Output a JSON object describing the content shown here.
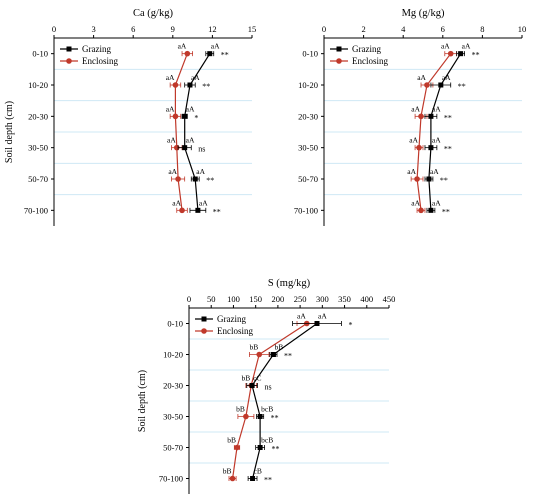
{
  "colors": {
    "grazing": "#000000",
    "enclosing": "#c0392b",
    "band": "#cfe8f5"
  },
  "chart_data": [
    {
      "type": "line",
      "title": "Ca (g/kg)",
      "ylabel": "Soil depth (cm)",
      "xlim": [
        0,
        15
      ],
      "xticks": [
        0,
        3,
        6,
        9,
        12,
        15
      ],
      "categories": [
        "0-10",
        "10-20",
        "20-30",
        "30-50",
        "50-70",
        "70-100"
      ],
      "legend_position": "top-left",
      "series": [
        {
          "name": "Grazing",
          "values": [
            11.8,
            10.3,
            9.9,
            9.9,
            10.7,
            10.9
          ],
          "errors": [
            0.3,
            0.4,
            0.2,
            0.5,
            0.3,
            0.6
          ],
          "labels": [
            "aA",
            "aA",
            "aA",
            "aA",
            "aA",
            "aA"
          ]
        },
        {
          "name": "Enclosing",
          "values": [
            10.1,
            9.2,
            9.2,
            9.3,
            9.4,
            9.7
          ],
          "errors": [
            0.4,
            0.4,
            0.4,
            0.4,
            0.5,
            0.4
          ],
          "labels": [
            "aA",
            "aA",
            "aA",
            "aA",
            "aA",
            "aA"
          ]
        }
      ],
      "significance": [
        "**",
        "**",
        "*",
        "ns",
        "**",
        "**"
      ]
    },
    {
      "type": "line",
      "title": "Mg (g/kg)",
      "ylabel": "",
      "xlim": [
        0,
        10
      ],
      "xticks": [
        0,
        2,
        4,
        6,
        8,
        10
      ],
      "categories": [
        "0-10",
        "10-20",
        "20-30",
        "30-50",
        "50-70",
        "70-100"
      ],
      "legend_position": "top-left",
      "series": [
        {
          "name": "Grazing",
          "values": [
            6.9,
            5.9,
            5.4,
            5.4,
            5.3,
            5.4
          ],
          "errors": [
            0.2,
            0.5,
            0.3,
            0.3,
            0.2,
            0.2
          ],
          "labels": [
            "aA",
            "aA",
            "aA",
            "aA",
            "aA",
            "aA"
          ]
        },
        {
          "name": "Enclosing",
          "values": [
            6.4,
            5.2,
            4.9,
            4.8,
            4.7,
            4.9
          ],
          "errors": [
            0.3,
            0.3,
            0.3,
            0.2,
            0.3,
            0.2
          ],
          "labels": [
            "aA",
            "aA",
            "aA",
            "aA",
            "aA",
            "aA"
          ]
        }
      ],
      "significance": [
        "**",
        "**",
        "**",
        "**",
        "**",
        "**"
      ]
    },
    {
      "type": "line",
      "title": "S (mg/kg)",
      "ylabel": "Soil depth (cm)",
      "xlim": [
        0,
        450
      ],
      "xticks": [
        0,
        50,
        100,
        150,
        200,
        250,
        300,
        350,
        400,
        450
      ],
      "categories": [
        "0-10",
        "10-20",
        "20-30",
        "30-50",
        "50-70",
        "70-100"
      ],
      "legend_position": "top-left",
      "series": [
        {
          "name": "Grazing",
          "values": [
            288,
            190,
            142,
            160,
            160,
            143
          ],
          "errors": [
            55,
            8,
            12,
            8,
            10,
            10
          ],
          "labels": [
            "aA",
            "bB",
            "cC",
            "bcB",
            "bcB",
            "cB"
          ]
        },
        {
          "name": "Enclosing",
          "values": [
            265,
            158,
            140,
            128,
            108,
            98
          ],
          "errors": [
            22,
            22,
            12,
            18,
            6,
            8
          ],
          "labels": [
            "aA",
            "bB",
            "bB",
            "bB",
            "bB",
            "bB"
          ]
        }
      ],
      "significance": [
        "*",
        "**",
        "ns",
        "**",
        "**",
        "**"
      ]
    }
  ]
}
